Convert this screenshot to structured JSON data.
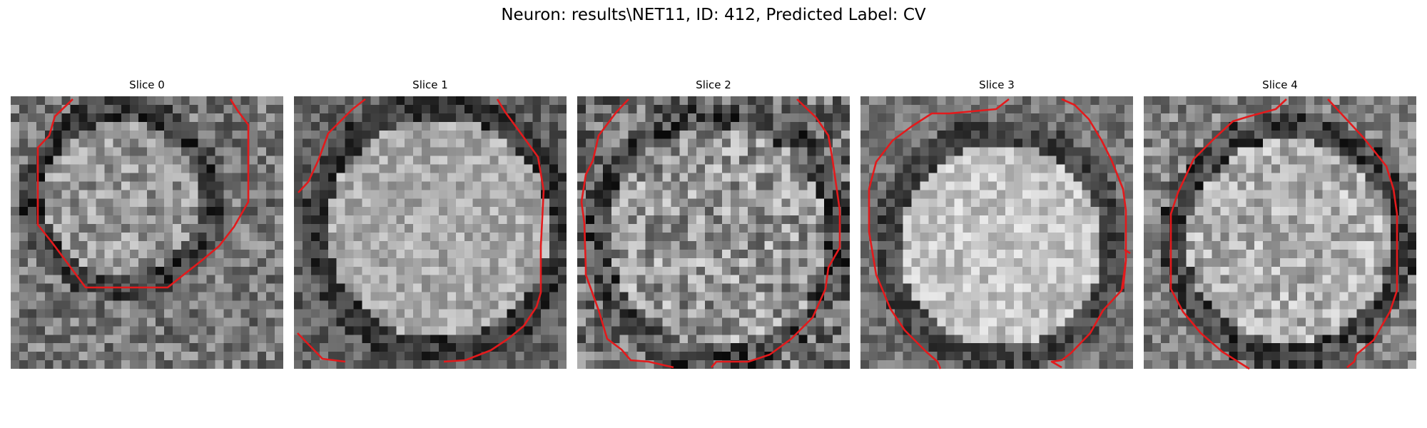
{
  "title": "Neuron: results\\NET11, ID: 412, Predicted Label: CV",
  "contour_color": "#e31a1c",
  "slices": [
    {
      "label": "Slice 0"
    },
    {
      "label": "Slice 1"
    },
    {
      "label": "Slice 2"
    },
    {
      "label": "Slice 3"
    },
    {
      "label": "Slice 4"
    }
  ]
}
